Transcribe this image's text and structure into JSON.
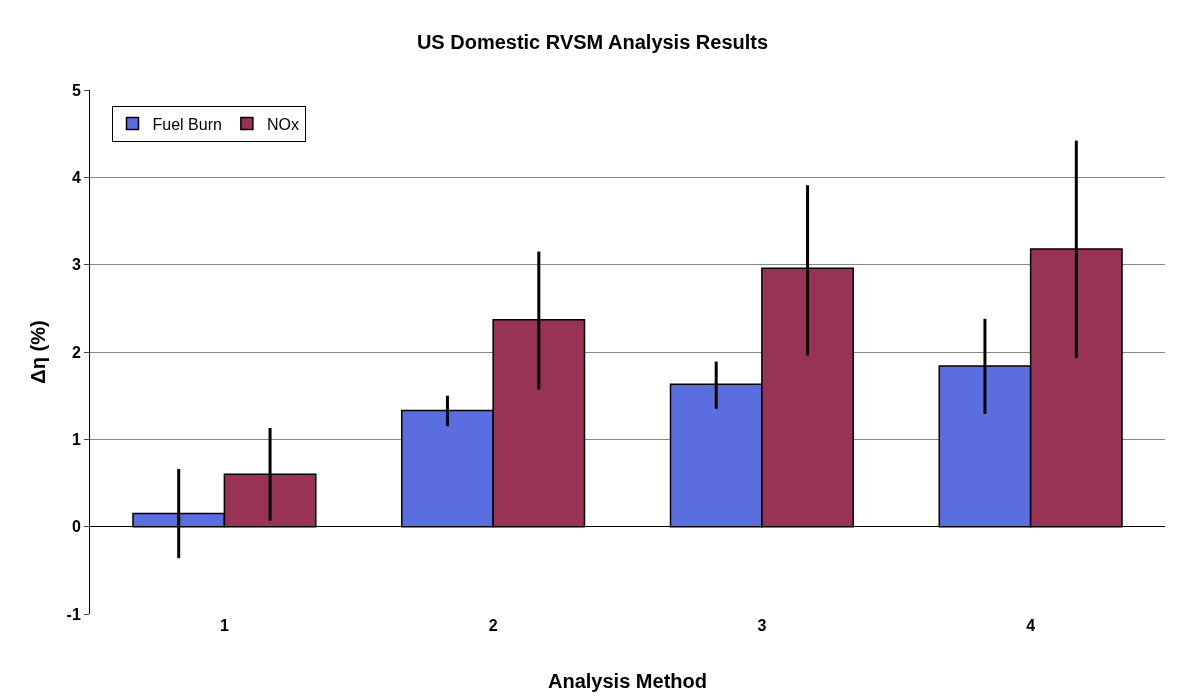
{
  "chart_data": {
    "type": "bar",
    "title": "US Domestic RVSM Analysis Results",
    "xlabel": "Analysis Method",
    "ylabel": "Δη (%)",
    "categories": [
      "1",
      "2",
      "3",
      "4"
    ],
    "series": [
      {
        "name": "Fuel Burn",
        "color": "#5a6ee0",
        "values": [
          0.15,
          1.33,
          1.63,
          1.84
        ],
        "errors": [
          [
            -0.36,
            0.66
          ],
          [
            1.15,
            1.5
          ],
          [
            1.35,
            1.89
          ],
          [
            1.29,
            2.38
          ]
        ]
      },
      {
        "name": "NOx",
        "color": "#993355",
        "values": [
          0.6,
          2.37,
          2.96,
          3.18
        ],
        "errors": [
          [
            0.07,
            1.13
          ],
          [
            1.57,
            3.15
          ],
          [
            1.96,
            3.91
          ],
          [
            1.93,
            4.42
          ]
        ]
      }
    ],
    "ylim": [
      -1,
      5
    ],
    "yticks": [
      -1,
      0,
      1,
      2,
      3,
      4,
      5
    ],
    "grid": "y",
    "legend": "top left"
  }
}
